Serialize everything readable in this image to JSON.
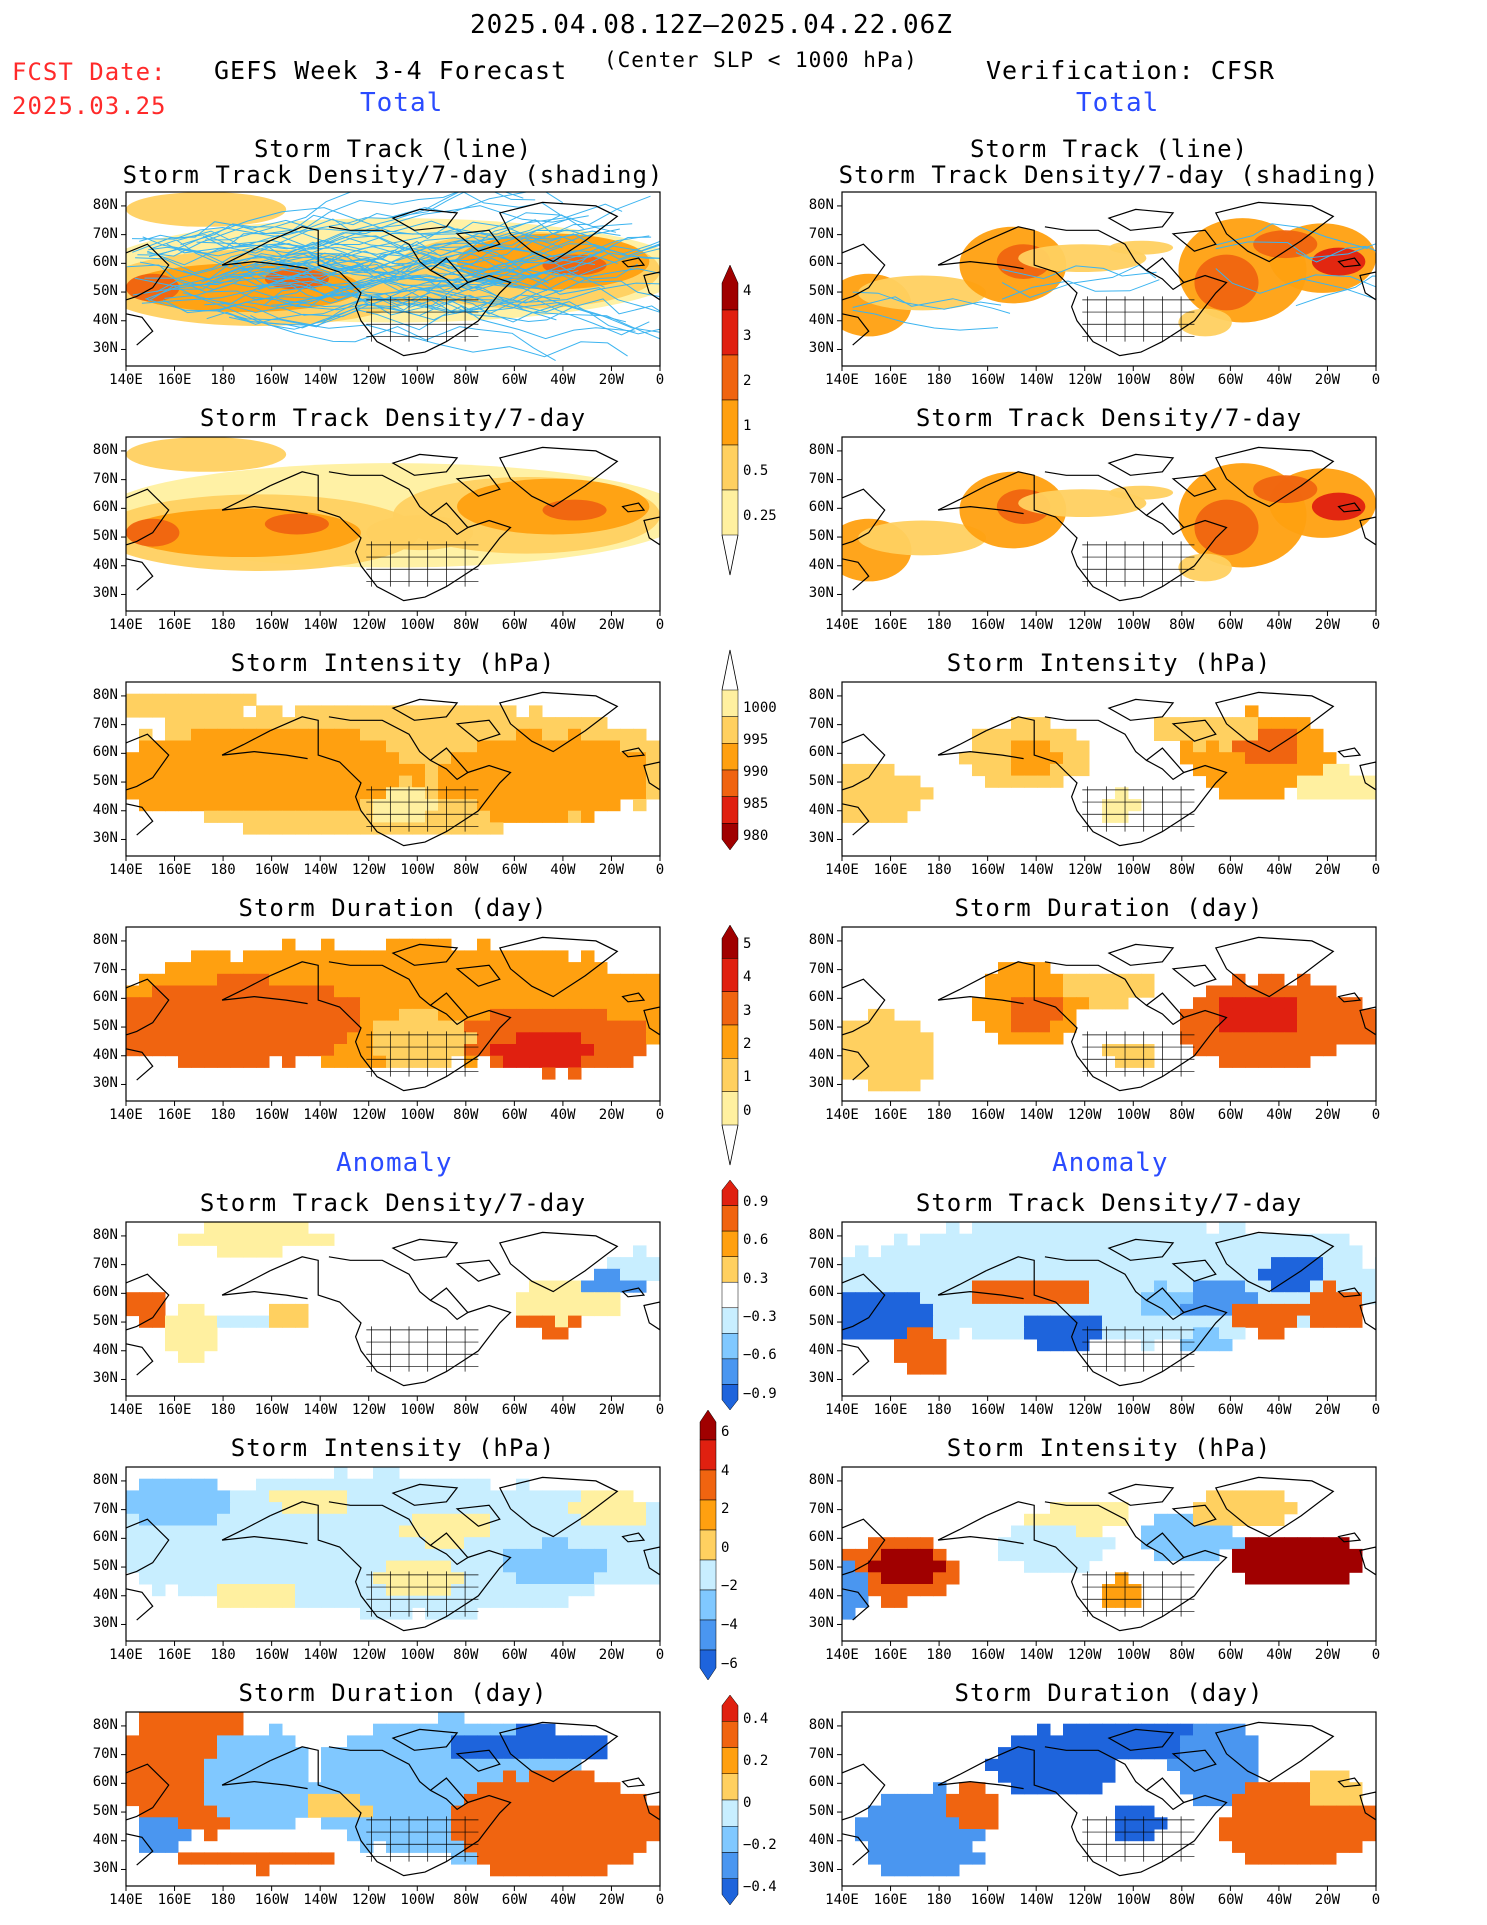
{
  "header": {
    "period": "2025.04.08.12Z–2025.04.22.06Z",
    "fcst_label": "FCST Date:",
    "fcst_date": "2025.03.25",
    "model": "GEFS Week 3-4 Forecast",
    "criterion": "(Center SLP < 1000 hPa)",
    "verification": "Verification: CFSR",
    "left_section_total": "Total",
    "right_section_total": "Total",
    "left_section_anomaly": "Anomaly",
    "right_section_anomaly": "Anomaly"
  },
  "axes": {
    "lat_labels": [
      "80N",
      "70N",
      "60N",
      "50N",
      "40N",
      "30N"
    ],
    "lon_labels": [
      "140E",
      "160E",
      "180",
      "160W",
      "140W",
      "120W",
      "100W",
      "80W",
      "60W",
      "40W",
      "20W",
      "0"
    ]
  },
  "colors": {
    "pos": [
      "#fff0a0",
      "#ffd060",
      "#ffa010",
      "#f06410",
      "#e02010",
      "#a00000"
    ],
    "neg": [
      "#c8eeff",
      "#80c8ff",
      "#4a96f0",
      "#1e64dc"
    ],
    "track_line": "#3cb4f0",
    "land_outline": "#000000"
  },
  "panels": [
    {
      "id": "L1",
      "title_line1": "Storm Track (line)",
      "title_line2": "Storm Track Density/7-day (shading)"
    },
    {
      "id": "R1",
      "title_line1": "Storm Track (line)",
      "title_line2": "Storm Track Density/7-day (shading)"
    },
    {
      "id": "L2",
      "title_line1": "Storm Track Density/7-day"
    },
    {
      "id": "R2",
      "title_line1": "Storm Track Density/7-day"
    },
    {
      "id": "L3",
      "title_line1": "Storm Intensity (hPa)"
    },
    {
      "id": "R3",
      "title_line1": "Storm Intensity (hPa)"
    },
    {
      "id": "L4",
      "title_line1": "Storm Duration (day)"
    },
    {
      "id": "R4",
      "title_line1": "Storm Duration (day)"
    },
    {
      "id": "L5",
      "title_line1": "Storm Track Density/7-day"
    },
    {
      "id": "R5",
      "title_line1": "Storm Track Density/7-day"
    },
    {
      "id": "L6",
      "title_line1": "Storm Intensity (hPa)"
    },
    {
      "id": "R6",
      "title_line1": "Storm Intensity (hPa)"
    },
    {
      "id": "L7",
      "title_line1": "Storm Duration (day)"
    },
    {
      "id": "R7",
      "title_line1": "Storm Duration (day)"
    }
  ],
  "colorbars": [
    {
      "id": "density_total",
      "labels": [
        "4",
        "3",
        "2",
        "1",
        "0.5",
        "0.25"
      ],
      "colors": [
        "#a00000",
        "#e02010",
        "#f06410",
        "#ffa010",
        "#ffd060",
        "#fff0a0"
      ]
    },
    {
      "id": "intensity_total",
      "labels": [
        "1000",
        "995",
        "990",
        "985",
        "980"
      ],
      "colors": [
        "#fff0a0",
        "#ffd060",
        "#ffa010",
        "#f06410",
        "#e02010",
        "#a00000"
      ]
    },
    {
      "id": "duration_total",
      "labels": [
        "5",
        "4",
        "3",
        "2",
        "1",
        "0"
      ],
      "colors": [
        "#a00000",
        "#e02010",
        "#f06410",
        "#ffa010",
        "#ffd060",
        "#fff0a0"
      ]
    },
    {
      "id": "density_anom",
      "labels": [
        "0.9",
        "0.6",
        "0.3",
        "−0.3",
        "−0.6",
        "−0.9"
      ],
      "colors": [
        "#e02010",
        "#f06410",
        "#ffa010",
        "#ffd060",
        "#ffffff",
        "#c8eeff",
        "#80c8ff",
        "#4a96f0",
        "#1e64dc"
      ]
    },
    {
      "id": "intensity_anom",
      "labels": [
        "6",
        "4",
        "2",
        "0",
        "−2",
        "−4",
        "−6"
      ],
      "colors": [
        "#a00000",
        "#e02010",
        "#f06410",
        "#ffa010",
        "#ffd060",
        "#c8eeff",
        "#80c8ff",
        "#4a96f0",
        "#1e64dc"
      ]
    },
    {
      "id": "duration_anom",
      "labels": [
        "0.4",
        "0.2",
        "0",
        "−0.2",
        "−0.4"
      ],
      "colors": [
        "#e02010",
        "#f06410",
        "#ffa010",
        "#ffd060",
        "#c8eeff",
        "#80c8ff",
        "#4a96f0",
        "#1e64dc"
      ]
    }
  ],
  "chart_data": [
    {
      "type": "heatmap",
      "panel": "L1",
      "title": "Storm Track (line) / Storm Track Density/7-day (shading)",
      "source": "GEFS",
      "region": "140E–0, 25N–85N",
      "description": "forecast storm track lines with density shading"
    },
    {
      "type": "heatmap",
      "panel": "R1",
      "title": "Storm Track (line) / Storm Track Density/7-day (shading)",
      "source": "CFSR"
    },
    {
      "type": "heatmap",
      "panel": "L2",
      "title": "Storm Track Density/7-day",
      "levels": [
        0.25,
        0.5,
        1,
        2,
        3,
        4
      ]
    },
    {
      "type": "heatmap",
      "panel": "R2",
      "title": "Storm Track Density/7-day",
      "levels": [
        0.25,
        0.5,
        1,
        2,
        3,
        4
      ]
    },
    {
      "type": "heatmap",
      "panel": "L3",
      "title": "Storm Intensity (hPa)",
      "levels": [
        1000,
        995,
        990,
        985,
        980
      ]
    },
    {
      "type": "heatmap",
      "panel": "R3",
      "title": "Storm Intensity (hPa)",
      "levels": [
        1000,
        995,
        990,
        985,
        980
      ]
    },
    {
      "type": "heatmap",
      "panel": "L4",
      "title": "Storm Duration (day)",
      "levels": [
        0,
        1,
        2,
        3,
        4,
        5
      ]
    },
    {
      "type": "heatmap",
      "panel": "R4",
      "title": "Storm Duration (day)",
      "levels": [
        0,
        1,
        2,
        3,
        4,
        5
      ]
    },
    {
      "type": "heatmap",
      "panel": "L5",
      "title": "Storm Track Density/7-day anomaly",
      "levels": [
        -0.9,
        -0.6,
        -0.3,
        0.3,
        0.6,
        0.9
      ]
    },
    {
      "type": "heatmap",
      "panel": "R5",
      "title": "Storm Track Density/7-day anomaly",
      "levels": [
        -0.9,
        -0.6,
        -0.3,
        0.3,
        0.6,
        0.9
      ]
    },
    {
      "type": "heatmap",
      "panel": "L6",
      "title": "Storm Intensity (hPa) anomaly",
      "levels": [
        -6,
        -4,
        -2,
        0,
        2,
        4,
        6
      ]
    },
    {
      "type": "heatmap",
      "panel": "R6",
      "title": "Storm Intensity (hPa) anomaly",
      "levels": [
        -6,
        -4,
        -2,
        0,
        2,
        4,
        6
      ]
    },
    {
      "type": "heatmap",
      "panel": "L7",
      "title": "Storm Duration (day) anomaly",
      "levels": [
        -0.4,
        -0.2,
        0,
        0.2,
        0.4
      ]
    },
    {
      "type": "heatmap",
      "panel": "R7",
      "title": "Storm Duration (day) anomaly",
      "levels": [
        -0.4,
        -0.2,
        0,
        0.2,
        0.4
      ]
    }
  ]
}
